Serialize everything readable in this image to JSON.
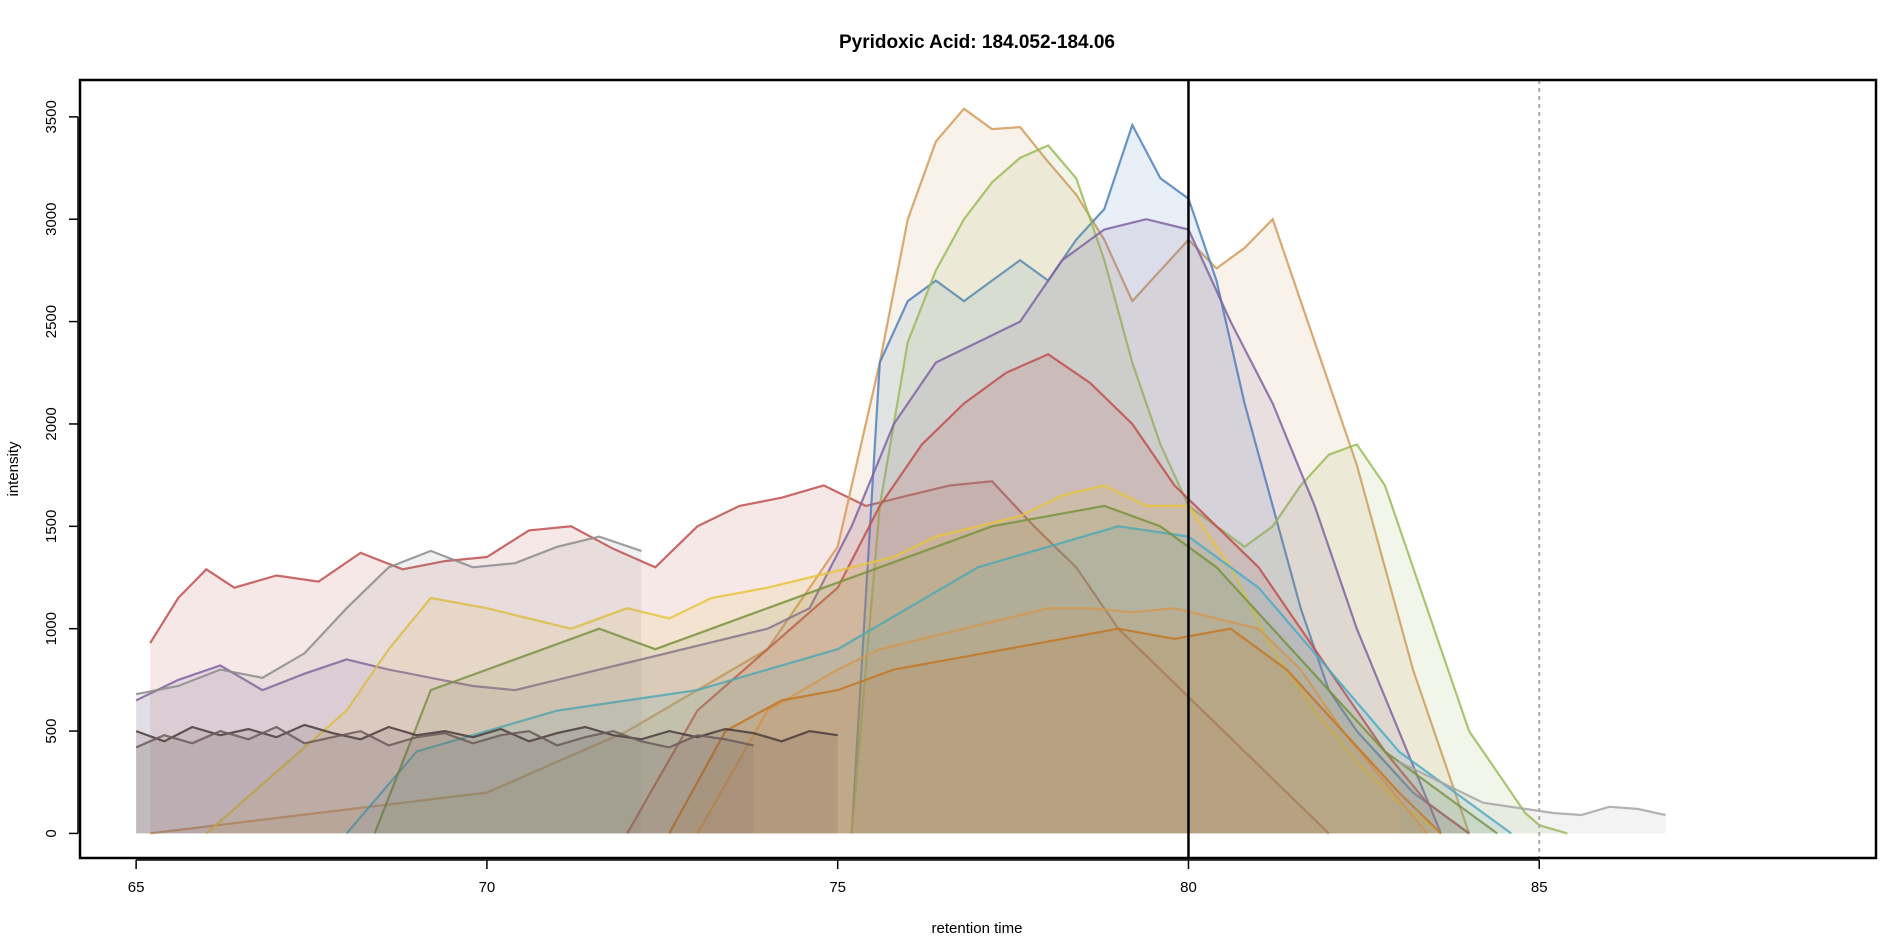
{
  "chart_data": {
    "type": "area",
    "title": "Pyridoxic Acid: 184.052-184.06",
    "xlabel": "retention time",
    "ylabel": "intensity",
    "xlim": [
      64.2,
      89.8
    ],
    "ylim": [
      -120,
      3680
    ],
    "x_ticks": [
      {
        "value": 65,
        "label": "65"
      },
      {
        "value": 70,
        "label": "70"
      },
      {
        "value": 75,
        "label": "75"
      },
      {
        "value": 80,
        "label": "80"
      },
      {
        "value": 85,
        "label": "85"
      }
    ],
    "y_ticks": [
      {
        "value": 0,
        "label": "0"
      },
      {
        "value": 500,
        "label": "500"
      },
      {
        "value": 1000,
        "label": "1000"
      },
      {
        "value": 1500,
        "label": "1500"
      },
      {
        "value": 2000,
        "label": "2000"
      },
      {
        "value": 2500,
        "label": "2500"
      },
      {
        "value": 3000,
        "label": "3000"
      },
      {
        "value": 3500,
        "label": "3500"
      }
    ],
    "vertical_lines": [
      {
        "x": 80,
        "style": "solid",
        "color": "#000000"
      },
      {
        "x": 85,
        "style": "dotted",
        "color": "#aaaaaa"
      }
    ],
    "grid": false,
    "legend": "none",
    "series": [
      {
        "color": "#c0504d",
        "x": [
          65.2,
          65.6,
          66.0,
          66.4,
          67.0,
          67.6,
          68.2,
          68.8,
          69.4,
          70.0,
          70.6,
          71.2,
          71.8,
          72.4,
          73.0,
          73.6,
          74.2,
          74.8,
          75.4,
          76.0,
          76.6,
          77.2,
          77.8,
          78.4,
          79.0,
          79.6,
          80.2,
          80.8,
          81.4,
          82.0
        ],
        "y": [
          930,
          1150,
          1290,
          1200,
          1260,
          1230,
          1370,
          1290,
          1330,
          1350,
          1480,
          1500,
          1390,
          1300,
          1500,
          1600,
          1640,
          1700,
          1600,
          1650,
          1700,
          1720,
          1500,
          1300,
          1000,
          800,
          600,
          400,
          200,
          0
        ]
      },
      {
        "color": "#d49a5a",
        "x": [
          65.2,
          70.0,
          72.0,
          74.0,
          75.0,
          75.6,
          76.0,
          76.4,
          76.8,
          77.2,
          77.6,
          78.0,
          78.4,
          78.8,
          79.2,
          79.6,
          80.0,
          80.4,
          80.8,
          81.2,
          81.6,
          82.0,
          82.4,
          82.8,
          83.2,
          83.6,
          84.0
        ],
        "y": [
          0,
          200,
          500,
          900,
          1400,
          2300,
          3000,
          3380,
          3540,
          3440,
          3450,
          3280,
          3120,
          2900,
          2600,
          2750,
          2900,
          2760,
          2860,
          3000,
          2600,
          2200,
          1800,
          1300,
          800,
          400,
          0
        ]
      },
      {
        "color": "#4f81bd",
        "x": [
          75.2,
          75.6,
          76.0,
          76.4,
          76.8,
          77.2,
          77.6,
          78.0,
          78.4,
          78.8,
          79.2,
          79.6,
          80.0,
          80.4,
          80.8,
          81.2,
          81.6,
          82.0,
          82.4,
          82.8,
          83.2,
          83.6,
          84.0
        ],
        "y": [
          0,
          2300,
          2600,
          2700,
          2600,
          2700,
          2800,
          2700,
          2900,
          3050,
          3460,
          3200,
          3100,
          2700,
          2100,
          1600,
          1100,
          700,
          500,
          350,
          200,
          100,
          0
        ]
      },
      {
        "color": "#9bbb59",
        "x": [
          75.2,
          75.6,
          76.0,
          76.4,
          76.8,
          77.2,
          77.6,
          78.0,
          78.4,
          78.8,
          79.2,
          79.6,
          80.0,
          80.4,
          80.8,
          81.2,
          81.6,
          82.0,
          82.4,
          82.8,
          83.2,
          83.6,
          84.0,
          84.4,
          84.8,
          85.0,
          85.4
        ],
        "y": [
          0,
          1600,
          2400,
          2750,
          3000,
          3180,
          3300,
          3360,
          3200,
          2800,
          2300,
          1900,
          1600,
          1500,
          1400,
          1500,
          1700,
          1850,
          1900,
          1700,
          1300,
          900,
          500,
          300,
          100,
          40,
          0
        ]
      },
      {
        "color": "#8064a2",
        "x": [
          65.0,
          65.6,
          66.2,
          66.8,
          67.4,
          68.0,
          68.6,
          69.2,
          69.8,
          70.4,
          71.0,
          71.6,
          72.2,
          72.8,
          73.4,
          74.0,
          74.6,
          75.2,
          75.8,
          76.4,
          77.0,
          77.6,
          78.2,
          78.8,
          79.4,
          80.0,
          80.6,
          81.2,
          81.8,
          82.4,
          83.0,
          83.6
        ],
        "y": [
          650,
          750,
          820,
          700,
          780,
          850,
          800,
          760,
          720,
          700,
          750,
          800,
          850,
          900,
          950,
          1000,
          1100,
          1500,
          2000,
          2300,
          2400,
          2500,
          2800,
          2950,
          3000,
          2950,
          2500,
          2100,
          1600,
          1000,
          500,
          0
        ]
      },
      {
        "color": "#c0504d",
        "x": [
          72.0,
          73.0,
          74.0,
          75.0,
          75.6,
          76.2,
          76.8,
          77.4,
          78.0,
          78.6,
          79.2,
          79.8,
          80.4,
          81.0,
          81.6,
          82.2,
          82.8,
          83.4,
          84.0
        ],
        "y": [
          0,
          600,
          900,
          1200,
          1600,
          1900,
          2100,
          2250,
          2340,
          2200,
          2000,
          1700,
          1500,
          1300,
          1000,
          700,
          400,
          150,
          0
        ]
      },
      {
        "color": "#e8c43c",
        "x": [
          66.0,
          67.0,
          68.0,
          68.6,
          69.2,
          70.0,
          70.6,
          71.2,
          72.0,
          72.6,
          73.2,
          74.0,
          74.6,
          75.2,
          75.8,
          76.4,
          77.0,
          77.6,
          78.2,
          78.8,
          79.4,
          80.0,
          80.6,
          81.2,
          81.8,
          82.4,
          83.0,
          83.6
        ],
        "y": [
          0,
          300,
          600,
          900,
          1150,
          1100,
          1050,
          1000,
          1100,
          1050,
          1150,
          1200,
          1250,
          1300,
          1350,
          1450,
          1500,
          1550,
          1650,
          1700,
          1600,
          1600,
          1300,
          900,
          600,
          350,
          150,
          0
        ]
      },
      {
        "color": "#f79646",
        "x": [
          73.0,
          74.0,
          75.0,
          75.6,
          76.2,
          76.8,
          77.4,
          78.0,
          78.6,
          79.2,
          79.8,
          80.4,
          81.0,
          81.6,
          82.2,
          82.8,
          83.4
        ],
        "y": [
          0,
          600,
          800,
          900,
          950,
          1000,
          1050,
          1100,
          1100,
          1080,
          1100,
          1050,
          1000,
          800,
          500,
          250,
          0
        ]
      },
      {
        "color": "#e36c09",
        "x": [
          72.6,
          73.4,
          74.2,
          75.0,
          75.8,
          76.6,
          77.4,
          78.2,
          79.0,
          79.8,
          80.6,
          81.4,
          82.2,
          83.0,
          83.6
        ],
        "y": [
          0,
          500,
          650,
          700,
          800,
          850,
          900,
          950,
          1000,
          950,
          1000,
          800,
          500,
          200,
          0
        ]
      },
      {
        "color": "#4bacc6",
        "x": [
          68.0,
          69.0,
          70.0,
          71.0,
          72.0,
          73.0,
          74.0,
          75.0,
          76.0,
          77.0,
          78.0,
          79.0,
          80.0,
          81.0,
          82.0,
          83.0,
          84.0,
          84.6
        ],
        "y": [
          0,
          400,
          500,
          600,
          650,
          700,
          800,
          900,
          1100,
          1300,
          1400,
          1500,
          1450,
          1200,
          800,
          400,
          150,
          0
        ]
      },
      {
        "color": "#77933c",
        "x": [
          68.4,
          69.2,
          70.0,
          70.8,
          71.6,
          72.4,
          73.2,
          74.0,
          74.8,
          75.6,
          76.4,
          77.2,
          78.0,
          78.8,
          79.6,
          80.4,
          81.2,
          82.0,
          82.8,
          83.6,
          84.4
        ],
        "y": [
          0,
          700,
          800,
          900,
          1000,
          900,
          1000,
          1100,
          1200,
          1300,
          1400,
          1500,
          1550,
          1600,
          1500,
          1300,
          1000,
          700,
          400,
          200,
          0
        ]
      },
      {
        "color": "#8c8c8c",
        "x": [
          65.0,
          65.6,
          66.2,
          66.8,
          67.4,
          68.0,
          68.6,
          69.2,
          69.8,
          70.4,
          71.0,
          71.6,
          72.2
        ],
        "y": [
          680,
          720,
          800,
          760,
          880,
          1100,
          1300,
          1380,
          1300,
          1320,
          1400,
          1450,
          1380
        ]
      },
      {
        "color": "#4a3c3c",
        "x": [
          65.0,
          65.4,
          65.8,
          66.2,
          66.6,
          67.0,
          67.4,
          67.8,
          68.2,
          68.6,
          69.0,
          69.4,
          69.8,
          70.2,
          70.6,
          71.0,
          71.4,
          71.8,
          72.2,
          72.6,
          73.0,
          73.4,
          73.8,
          74.2,
          74.6,
          75.0
        ],
        "y": [
          500,
          450,
          520,
          480,
          510,
          470,
          530,
          490,
          460,
          520,
          480,
          500,
          470,
          510,
          450,
          490,
          520,
          480,
          460,
          500,
          470,
          510,
          490,
          450,
          500,
          480
        ]
      },
      {
        "color": "#6b5b5b",
        "x": [
          65.0,
          65.4,
          65.8,
          66.2,
          66.6,
          67.0,
          67.4,
          67.8,
          68.2,
          68.6,
          69.0,
          69.4,
          69.8,
          70.2,
          70.6,
          71.0,
          71.4,
          71.8,
          72.2,
          72.6,
          73.0,
          73.4,
          73.8
        ],
        "y": [
          420,
          480,
          440,
          500,
          460,
          520,
          440,
          470,
          500,
          430,
          470,
          490,
          440,
          480,
          500,
          430,
          470,
          500,
          450,
          420,
          480,
          460,
          430
        ]
      },
      {
        "color": "#a6a6a6",
        "x": [
          83.0,
          83.6,
          84.2,
          84.8,
          85.2,
          85.6,
          86.0,
          86.4,
          86.8
        ],
        "y": [
          350,
          250,
          150,
          120,
          100,
          90,
          130,
          120,
          90
        ]
      }
    ]
  }
}
